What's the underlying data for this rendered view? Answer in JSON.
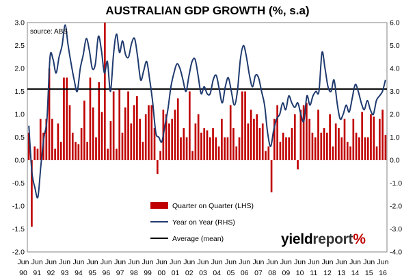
{
  "chart_data": {
    "type": "bar",
    "title": "AUSTRALIAN GDP GROWTH (%, s.a)",
    "source_note": "source: ABS",
    "y_left_range": [
      -2.0,
      3.0
    ],
    "y_left_ticks": [
      "-2.0",
      "-1.5",
      "-1.0",
      "-0.5",
      "0.0",
      "0.5",
      "1.0",
      "1.5",
      "2.0",
      "2.5",
      "3.0"
    ],
    "y_right_range": [
      -4.0,
      6.0
    ],
    "y_right_ticks": [
      "-4.0",
      "-3.0",
      "-2.0",
      "-1.0",
      "0.0",
      "1.0",
      "2.0",
      "3.0",
      "4.0",
      "5.0",
      "6.0"
    ],
    "x_tick_months": [
      "Jun",
      "Jun",
      "Jun",
      "Jun",
      "Jun",
      "Jun",
      "Jun",
      "Jun",
      "Jun",
      "Jun",
      "Jun",
      "Jun",
      "Jun",
      "Jun",
      "Jun",
      "Jun",
      "Jun",
      "Jun",
      "Jun",
      "Jun",
      "Jun",
      "Jun",
      "Jun",
      "Jun",
      "Jun",
      "Jun",
      "Jun"
    ],
    "x_tick_years": [
      "90",
      "91",
      "92",
      "93",
      "94",
      "95",
      "96",
      "97",
      "98",
      "99",
      "00",
      "01",
      "02",
      "03",
      "04",
      "05",
      "06",
      "07",
      "08",
      "09",
      "10",
      "11",
      "12",
      "13",
      "14",
      "15",
      "16"
    ],
    "legend": [
      {
        "label": "Quarter on Quarter (LHS)",
        "color": "#c00000",
        "kind": "bar"
      },
      {
        "label": "Year on Year (RHS)",
        "color": "#1f3a6e",
        "kind": "line"
      },
      {
        "label": "Average (mean)",
        "color": "#000000",
        "kind": "hline"
      }
    ],
    "average_value_lhs": 1.55,
    "series": [
      {
        "name": "Quarter on Quarter (LHS)",
        "axis": "left",
        "values": [
          0.6,
          -1.45,
          0.3,
          0.25,
          0.9,
          0.6,
          0.9,
          2.0,
          0.9,
          0.25,
          0.8,
          0.4,
          1.8,
          1.8,
          1.2,
          0.6,
          0.4,
          0.35,
          0.7,
          1.3,
          0.4,
          1.8,
          1.15,
          0.5,
          1.7,
          1.05,
          3.0,
          0.25,
          0.85,
          1.5,
          0.25,
          1.55,
          0.6,
          1.15,
          1.5,
          0.8,
          1.2,
          1.4,
          0.9,
          0.4,
          1.0,
          1.2,
          1.2,
          0.7,
          -0.3,
          0.2,
          1.1,
          1.0,
          0.8,
          0.9,
          1.1,
          1.35,
          0.5,
          0.7,
          0.5,
          1.5,
          0.2,
          0.8,
          1.0,
          0.6,
          0.7,
          0.65,
          0.5,
          0.7,
          0.5,
          0.3,
          0.9,
          0.5,
          0.5,
          1.2,
          0.7,
          0.3,
          0.5,
          1.5,
          1.5,
          0.8,
          1.1,
          0.9,
          1.0,
          0.7,
          0.8,
          0.2,
          0.3,
          -0.7,
          0.9,
          1.2,
          0.4,
          0.6,
          0.5,
          0.5,
          0.7,
          1.0,
          -0.2,
          1.1,
          1.2,
          1.25,
          0.9,
          0.6,
          0.5,
          1.1,
          0.6,
          0.7,
          0.6,
          1.0,
          0.3,
          0.8,
          0.7,
          0.5,
          0.9,
          0.4,
          0.3,
          0.9,
          0.6,
          0.5,
          1.05,
          0.5,
          0.5,
          1.0,
          0.95,
          0.3,
          0.9,
          1.1,
          0.55
        ]
      },
      {
        "name": "Year on Year (RHS)",
        "axis": "right",
        "values": [
          1.5,
          -0.5,
          -1.2,
          -1.6,
          -0.2,
          1.0,
          1.8,
          4.5,
          4.4,
          3.8,
          4.5,
          5.0,
          5.9,
          5.0,
          4.2,
          3.5,
          3.0,
          4.0,
          4.6,
          5.3,
          4.8,
          4.0,
          4.2,
          5.4,
          4.8,
          3.8,
          4.3,
          3.0,
          4.6,
          5.5,
          4.7,
          5.2,
          4.6,
          4.5,
          5.1,
          5.3,
          4.5,
          3.5,
          3.9,
          4.3,
          3.5,
          2.5,
          1.2,
          1.0,
          0.8,
          1.5,
          2.2,
          3.2,
          3.8,
          4.2,
          4.0,
          3.5,
          3.0,
          3.7,
          4.3,
          4.4,
          3.7,
          2.9,
          3.2,
          2.9,
          2.9,
          3.5,
          3.7,
          3.1,
          2.5,
          3.2,
          3.6,
          3.0,
          2.4,
          3.0,
          4.4,
          5.0,
          4.5,
          3.7,
          3.2,
          3.7,
          3.6,
          3.0,
          2.4,
          1.2,
          0.6,
          1.3,
          1.8,
          2.0,
          2.5,
          2.2,
          2.8,
          2.5,
          2.3,
          2.5,
          2.0,
          1.7,
          2.8,
          2.4,
          2.8,
          3.0,
          3.0,
          4.7,
          4.0,
          3.2,
          3.0,
          3.5,
          2.5,
          1.8,
          2.0,
          2.4,
          2.1,
          2.7,
          3.3,
          3.0,
          2.5,
          2.2,
          2.6,
          2.2,
          2.0,
          2.6,
          2.8,
          3.0,
          3.5
        ]
      }
    ]
  },
  "logo": {
    "part1": "yield",
    "part2": "report",
    "part3": "%"
  }
}
